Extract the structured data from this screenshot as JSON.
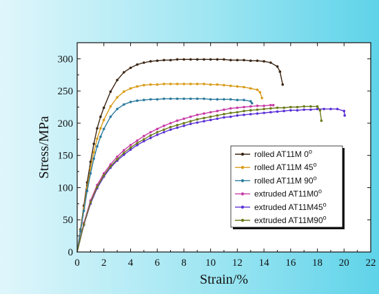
{
  "chart_data": {
    "type": "line",
    "xlabel": "Strain/%",
    "ylabel": "Stress/MPa",
    "xlim": [
      0,
      22
    ],
    "ylim": [
      0,
      325
    ],
    "xticks": [
      0,
      2,
      4,
      6,
      8,
      10,
      12,
      14,
      16,
      18,
      20,
      22
    ],
    "yticks": [
      0,
      50,
      100,
      150,
      200,
      250,
      300
    ],
    "grid": false,
    "legend_placement": "lower-right",
    "series": [
      {
        "name": "rolled AT11M 0",
        "degree": "o",
        "color": "#3a2412",
        "x": [
          0,
          0.25,
          0.5,
          0.75,
          1.0,
          1.25,
          1.5,
          1.75,
          2.0,
          2.5,
          3.0,
          3.5,
          4.0,
          4.5,
          5.0,
          5.5,
          6.0,
          6.5,
          7.0,
          7.5,
          8.0,
          8.5,
          9.0,
          9.5,
          10.0,
          10.5,
          11.0,
          11.5,
          12.0,
          12.5,
          13.0,
          13.5,
          14.0,
          14.5,
          15.0,
          15.2,
          15.4
        ],
        "y": [
          0,
          35,
          72,
          108,
          140,
          168,
          192,
          210,
          224,
          249,
          267,
          279,
          286,
          291,
          294,
          296,
          297,
          298,
          298,
          299,
          299,
          299,
          299,
          299,
          299,
          299,
          299,
          298,
          298,
          298,
          297,
          297,
          296,
          294,
          288,
          280,
          260
        ]
      },
      {
        "name": "rolled AT11M 45",
        "degree": "o",
        "color": "#d99a16",
        "x": [
          0,
          0.25,
          0.5,
          0.75,
          1.0,
          1.25,
          1.5,
          1.75,
          2.0,
          2.5,
          3.0,
          3.5,
          4.0,
          4.5,
          5.0,
          5.5,
          6.0,
          6.5,
          7.0,
          7.5,
          8.0,
          8.5,
          9.0,
          9.5,
          10.0,
          10.5,
          11.0,
          11.5,
          12.0,
          12.5,
          13.0,
          13.5,
          13.7,
          13.85
        ],
        "y": [
          0,
          33,
          68,
          100,
          130,
          155,
          176,
          192,
          205,
          226,
          240,
          249,
          254,
          257,
          259,
          260,
          260,
          261,
          261,
          261,
          261,
          261,
          261,
          261,
          260,
          260,
          259,
          258,
          257,
          256,
          254,
          252,
          248,
          239
        ]
      },
      {
        "name": "rolled AT11M 90",
        "degree": "o",
        "color": "#2a7a9e",
        "x": [
          0,
          0.25,
          0.5,
          0.75,
          1.0,
          1.25,
          1.5,
          1.75,
          2.0,
          2.5,
          3.0,
          3.5,
          4.0,
          4.5,
          5.0,
          5.5,
          6.0,
          6.5,
          7.0,
          7.5,
          8.0,
          8.5,
          9.0,
          9.5,
          10.0,
          10.5,
          11.0,
          11.5,
          12.0,
          12.5,
          13.0,
          13.1
        ],
        "y": [
          0,
          32,
          64,
          95,
          122,
          145,
          164,
          179,
          191,
          210,
          222,
          229,
          233,
          235,
          236,
          237,
          237,
          238,
          238,
          238,
          238,
          238,
          238,
          238,
          237,
          237,
          237,
          237,
          236,
          236,
          234,
          231
        ]
      },
      {
        "name": "extruded AT11M0",
        "degree": "o",
        "color": "#c83aa6",
        "x": [
          0,
          0.5,
          1.0,
          1.5,
          2.0,
          2.5,
          3.0,
          3.5,
          4.0,
          4.5,
          5.0,
          5.5,
          6.0,
          6.5,
          7.0,
          7.5,
          8.0,
          8.5,
          9.0,
          9.5,
          10.0,
          10.5,
          11.0,
          11.5,
          12.0,
          12.5,
          13.0,
          13.5,
          14.0,
          14.5,
          14.7
        ],
        "y": [
          0,
          45,
          80,
          104,
          122,
          136,
          148,
          158,
          166,
          173,
          180,
          186,
          191,
          196,
          200,
          204,
          207,
          210,
          213,
          215,
          217,
          219,
          221,
          223,
          224,
          225,
          226,
          227,
          227,
          228,
          228
        ]
      },
      {
        "name": "extruded AT11M45",
        "degree": "o",
        "color": "#5a2fd6",
        "x": [
          0,
          0.5,
          1.0,
          1.5,
          2.0,
          2.5,
          3.0,
          3.5,
          4.0,
          4.5,
          5.0,
          5.5,
          6.0,
          6.5,
          7.0,
          7.5,
          8.0,
          8.5,
          9.0,
          9.5,
          10.0,
          10.5,
          11.0,
          11.5,
          12.0,
          12.5,
          13.0,
          13.5,
          14.0,
          14.5,
          15.0,
          15.5,
          16.0,
          16.5,
          17.0,
          17.5,
          18.0,
          18.5,
          19.0,
          19.5,
          20.0,
          20.05
        ],
        "y": [
          0,
          42,
          75,
          99,
          117,
          131,
          142,
          151,
          159,
          166,
          172,
          177,
          182,
          186,
          190,
          193,
          196,
          199,
          201,
          203,
          205,
          207,
          209,
          210,
          212,
          213,
          214,
          215,
          216,
          217,
          218,
          219,
          220,
          220,
          221,
          221,
          222,
          222,
          222,
          222,
          219,
          212
        ]
      },
      {
        "name": "extruded AT11M90",
        "degree": "o",
        "color": "#6b7a1a",
        "x": [
          0,
          0.5,
          1.0,
          1.5,
          2.0,
          2.5,
          3.0,
          3.5,
          4.0,
          4.5,
          5.0,
          5.5,
          6.0,
          6.5,
          7.0,
          7.5,
          8.0,
          8.5,
          9.0,
          9.5,
          10.0,
          10.5,
          11.0,
          11.5,
          12.0,
          12.5,
          13.0,
          13.5,
          14.0,
          14.5,
          15.0,
          15.5,
          16.0,
          16.5,
          17.0,
          17.5,
          18.0,
          18.2,
          18.3
        ],
        "y": [
          0,
          43,
          77,
          101,
          119,
          133,
          144,
          154,
          162,
          169,
          175,
          181,
          186,
          190,
          194,
          197,
          200,
          203,
          206,
          208,
          210,
          212,
          214,
          216,
          217,
          219,
          220,
          221,
          222,
          223,
          224,
          224,
          225,
          225,
          226,
          226,
          226,
          220,
          204
        ]
      }
    ]
  }
}
